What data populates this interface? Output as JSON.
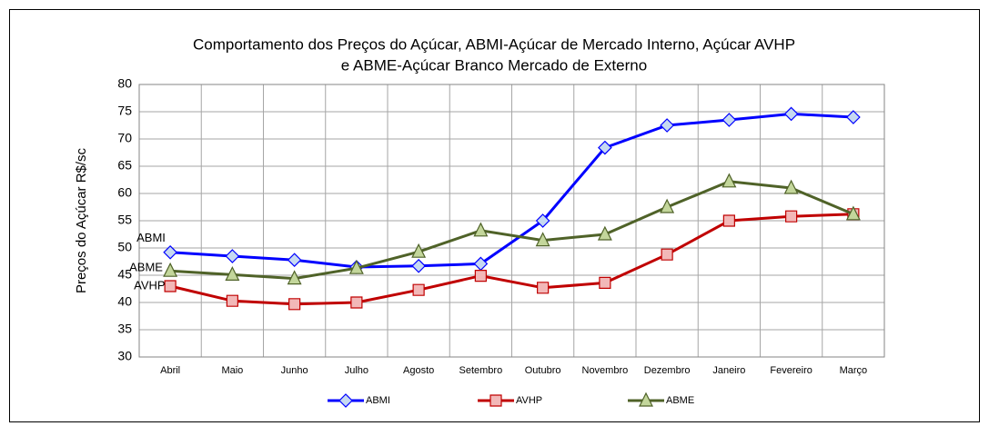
{
  "chart_data": {
    "type": "line",
    "title": [
      "Comportamento dos Preços do Açúcar,  ABMI-Açúcar de Mercado Interno, Açúcar AVHP",
      "e ABME-Açúcar Branco  Mercado de Externo"
    ],
    "y_label": "Preços do Açúcar R$/sc",
    "categories": [
      "Abril",
      "Maio",
      "Junho",
      "Julho",
      "Agosto",
      "Setembro",
      "Outubro",
      "Novembro",
      "Dezembro",
      "Janeiro",
      "Fevereiro",
      "Março"
    ],
    "series": [
      {
        "name": "ABMI",
        "color": "#0000ff",
        "marker": "diamond",
        "marker_fill": "#c6d9f1",
        "values": [
          49.2,
          48.5,
          47.8,
          46.5,
          46.7,
          47.1,
          55.0,
          68.4,
          72.5,
          73.5,
          74.6,
          74.0
        ]
      },
      {
        "name": "AVHP",
        "color": "#c00000",
        "marker": "square",
        "marker_fill": "#f2b8b8",
        "values": [
          43.0,
          40.3,
          39.7,
          40.0,
          42.3,
          44.9,
          42.7,
          43.6,
          48.8,
          55.0,
          55.8,
          56.2
        ]
      },
      {
        "name": "ABME",
        "color": "#4f6228",
        "marker": "triangle",
        "marker_fill": "#c3d69b",
        "values": [
          45.8,
          45.1,
          44.4,
          46.3,
          49.3,
          53.2,
          51.4,
          52.5,
          57.5,
          62.2,
          61.0,
          56.2
        ]
      }
    ],
    "ylim": [
      30,
      80
    ],
    "yticks": [
      30,
      35,
      40,
      45,
      50,
      55,
      60,
      65,
      70,
      75,
      80
    ],
    "grid": true,
    "legend": "bottom"
  }
}
